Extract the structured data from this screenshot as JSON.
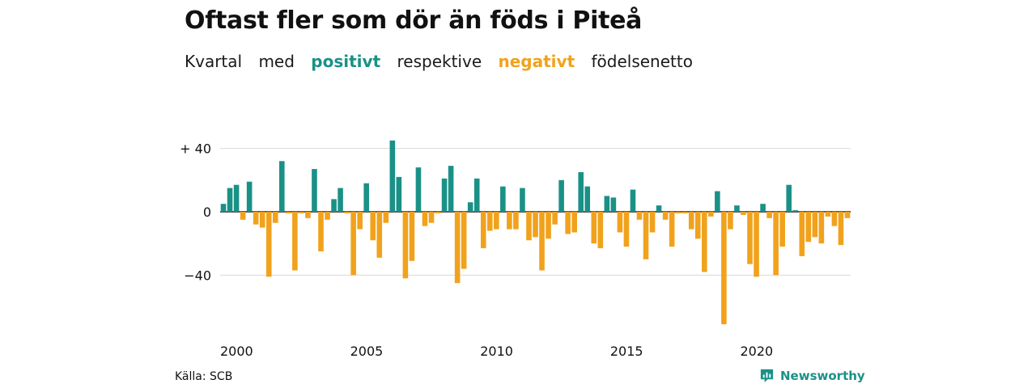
{
  "header": {
    "title": "Oftast fler som dör än föds i Piteå",
    "subtitle_parts": [
      "Kvartal",
      "med",
      "positivt",
      "respektive",
      "negativt",
      "födelsenetto"
    ]
  },
  "colors": {
    "positive": "#1a9187",
    "negative": "#f1a21c",
    "grid": "#d9d9d9",
    "text": "#111111"
  },
  "footer": {
    "source": "Källa: SCB",
    "brand": "Newsworthy"
  },
  "icons": {
    "brand": "newsworthy-logo-icon"
  },
  "chart_data": {
    "type": "bar",
    "ylim": [
      -71,
      45
    ],
    "y_ticks": [
      40,
      0,
      -40
    ],
    "y_tick_labels": [
      "+ 40",
      "0",
      "−40"
    ],
    "x_tick_years": [
      2000,
      2005,
      2010,
      2015,
      2020
    ],
    "x_tick_labels": [
      "2000",
      "2005",
      "2010",
      "2015",
      "2020"
    ],
    "grid": true,
    "start_year": 2000,
    "start_quarter": 1,
    "values": [
      5,
      15,
      17,
      -5,
      19,
      -8,
      -10,
      -41,
      -7,
      32,
      -1,
      -37,
      -1,
      -4,
      27,
      -25,
      -5,
      8,
      15,
      -1,
      -40,
      -11,
      18,
      -18,
      -29,
      -7,
      45,
      22,
      -42,
      -31,
      28,
      -9,
      -7,
      -1,
      21,
      29,
      -45,
      -36,
      6,
      21,
      -23,
      -12,
      -11,
      16,
      -11,
      -11,
      15,
      -18,
      -16,
      -37,
      -17,
      -8,
      20,
      -14,
      -13,
      25,
      16,
      -20,
      -23,
      10,
      9,
      -13,
      -22,
      14,
      -5,
      -30,
      -13,
      4,
      -5,
      -22,
      -1,
      -1,
      -11,
      -17,
      -38,
      -3,
      13,
      -71,
      -11,
      4,
      -2,
      -33,
      -41,
      5,
      -4,
      -40,
      -22,
      17,
      1,
      -28,
      -19,
      -16,
      -20,
      -3,
      -9,
      -21,
      -4
    ]
  }
}
